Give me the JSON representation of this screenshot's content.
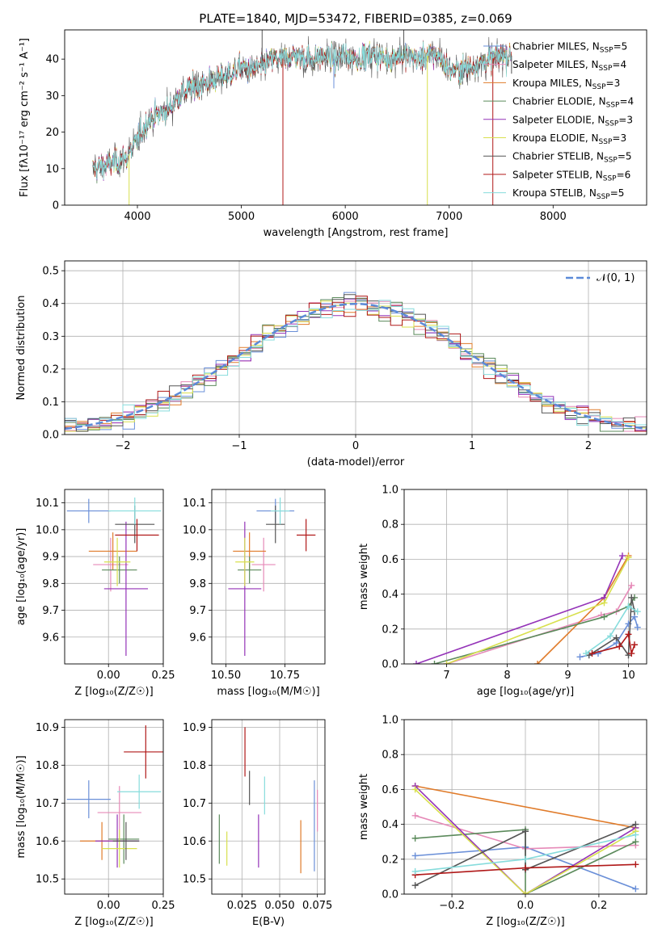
{
  "colors": {
    "chabrier_miles": "#6a8fd8",
    "salpeter_miles": "#e68ab8",
    "kroupa_miles": "#e07b2a",
    "chabrier_elodie": "#5b8a5b",
    "salpeter_elodie": "#9433b8",
    "kroupa_elodie": "#d8e04e",
    "chabrier_stelib": "#555555",
    "salpeter_stelib": "#b01818",
    "kroupa_stelib": "#86dcdc",
    "gaussian": "#5b8ad8"
  },
  "chart_data": [
    {
      "id": "spectrum",
      "type": "line",
      "title": "PLATE=1840, MJD=53472, FIBERID=0385, z=0.069",
      "xlabel": "wavelength [Angstrom, rest frame]",
      "ylabel": "Flux [fλ10⁻¹⁷ erg cm⁻² s⁻¹ A⁻¹]",
      "xlim": [
        3300,
        8900
      ],
      "ylim": [
        0,
        48
      ],
      "xticks": [
        "4000",
        "5000",
        "6000",
        "7000",
        "8000"
      ],
      "yticks": [
        "0",
        "10",
        "20",
        "30",
        "40"
      ],
      "grid": false,
      "legend": "top-right",
      "series": [
        {
          "key": "chabrier_miles",
          "name": "Chabrier MILES, N",
          "sub": "SSP",
          "suffix": "=5"
        },
        {
          "key": "salpeter_miles",
          "name": "Salpeter MILES, N",
          "sub": "SSP",
          "suffix": "=4"
        },
        {
          "key": "kroupa_miles",
          "name": "Kroupa MILES, N",
          "sub": "SSP",
          "suffix": "=3"
        },
        {
          "key": "chabrier_elodie",
          "name": "Chabrier ELODIE, N",
          "sub": "SSP",
          "suffix": "=4"
        },
        {
          "key": "salpeter_elodie",
          "name": "Salpeter ELODIE, N",
          "sub": "SSP",
          "suffix": "=3"
        },
        {
          "key": "kroupa_elodie",
          "name": "Kroupa ELODIE, N",
          "sub": "SSP",
          "suffix": "=3"
        },
        {
          "key": "chabrier_stelib",
          "name": "Chabrier STELIB, N",
          "sub": "SSP",
          "suffix": "=5"
        },
        {
          "key": "salpeter_stelib",
          "name": "Salpeter STELIB, N",
          "sub": "SSP",
          "suffix": "=6"
        },
        {
          "key": "kroupa_stelib",
          "name": "Kroupa STELIB, N",
          "sub": "SSP",
          "suffix": "=5"
        }
      ],
      "continuum": [
        [
          3570,
          10
        ],
        [
          3700,
          11
        ],
        [
          3800,
          12
        ],
        [
          3900,
          13
        ],
        [
          4000,
          18
        ],
        [
          4100,
          23
        ],
        [
          4200,
          25
        ],
        [
          4300,
          26
        ],
        [
          4400,
          30
        ],
        [
          4500,
          32
        ],
        [
          4600,
          33
        ],
        [
          4700,
          34
        ],
        [
          4800,
          35
        ],
        [
          4900,
          36
        ],
        [
          5000,
          38
        ],
        [
          5100,
          37
        ],
        [
          5200,
          38
        ],
        [
          5300,
          40
        ],
        [
          5400,
          40
        ],
        [
          5500,
          41
        ],
        [
          5600,
          41
        ],
        [
          5700,
          40
        ],
        [
          5800,
          41
        ],
        [
          5900,
          40
        ],
        [
          6000,
          41
        ],
        [
          6100,
          40
        ],
        [
          6200,
          41
        ],
        [
          6300,
          41
        ],
        [
          6400,
          40
        ],
        [
          6500,
          41
        ],
        [
          6600,
          41
        ],
        [
          6700,
          40
        ],
        [
          6800,
          41
        ],
        [
          6900,
          41
        ],
        [
          7000,
          37
        ],
        [
          7100,
          37
        ],
        [
          7200,
          38
        ],
        [
          7300,
          39
        ],
        [
          7400,
          40
        ],
        [
          7500,
          41
        ]
      ],
      "features": [
        {
          "x": 3920,
          "y": 0,
          "series": "kroupa_elodie"
        },
        {
          "x": 4860,
          "y": 32,
          "series": "chabrier_stelib"
        },
        {
          "x": 5200,
          "y": 48,
          "series": "chabrier_stelib"
        },
        {
          "x": 5400,
          "y": 0,
          "series": "salpeter_stelib"
        },
        {
          "x": 5890,
          "y": 32,
          "series": "chabrier_miles"
        },
        {
          "x": 6563,
          "y": 48,
          "series": "chabrier_stelib"
        },
        {
          "x": 6790,
          "y": 0,
          "series": "kroupa_elodie"
        },
        {
          "x": 7420,
          "y": 0,
          "series": "salpeter_stelib"
        },
        {
          "x": 7600,
          "y": 36,
          "series": "chabrier_stelib"
        }
      ]
    },
    {
      "id": "residuals",
      "type": "line",
      "xlabel": "(data-model)/error",
      "ylabel": "Normed distribution",
      "xlim": [
        -2.5,
        2.5
      ],
      "ylim": [
        0,
        0.53
      ],
      "xticks": [
        "−2",
        "−1",
        "0",
        "1",
        "2"
      ],
      "yticks": [
        "0.0",
        "0.1",
        "0.2",
        "0.3",
        "0.4",
        "0.5"
      ],
      "grid": true,
      "legend": "top-right",
      "gaussian_label": "𝒩(0, 1)",
      "bins": 50
    },
    {
      "id": "age_vs_Z",
      "type": "scatter",
      "xlabel": "Z [log₁₀(Z/Z☉)]",
      "ylabel": "age  [log₁₀(age/yr)]",
      "xlim": [
        -0.2,
        0.25
      ],
      "ylim": [
        9.5,
        10.15
      ],
      "xticks": [
        "0.00",
        "0.25"
      ],
      "yticks": [
        "9.6",
        "9.7",
        "9.8",
        "9.9",
        "10.0",
        "10.1"
      ],
      "grid": true,
      "points": [
        {
          "series": "chabrier_miles",
          "x": -0.09,
          "xerr": 0.1,
          "y": 10.07,
          "yerr": 0.045
        },
        {
          "series": "salpeter_miles",
          "x": 0.01,
          "xerr": 0.08,
          "y": 9.87,
          "yerr": 0.1
        },
        {
          "series": "kroupa_miles",
          "x": 0.02,
          "xerr": 0.11,
          "y": 9.92,
          "yerr": 0.07
        },
        {
          "series": "chabrier_elodie",
          "x": 0.05,
          "xerr": 0.08,
          "y": 9.85,
          "yerr": 0.05
        },
        {
          "series": "salpeter_elodie",
          "x": 0.08,
          "xerr": 0.1,
          "y": 9.78,
          "yerr": 0.25
        },
        {
          "series": "kroupa_elodie",
          "x": 0.04,
          "xerr": 0.06,
          "y": 9.88,
          "yerr": 0.09
        },
        {
          "series": "chabrier_stelib",
          "x": 0.12,
          "xerr": 0.09,
          "y": 10.02,
          "yerr": 0.07
        },
        {
          "series": "salpeter_stelib",
          "x": 0.13,
          "xerr": 0.1,
          "y": 9.98,
          "yerr": 0.06
        },
        {
          "series": "kroupa_stelib",
          "x": 0.12,
          "xerr": 0.12,
          "y": 10.07,
          "yerr": 0.05
        }
      ]
    },
    {
      "id": "age_vs_mass",
      "type": "scatter",
      "xlabel": "mass [log₁₀(M/M☉)]",
      "xlim": [
        10.44,
        10.92
      ],
      "ylim": [
        9.5,
        10.15
      ],
      "xticks": [
        "10.50",
        "10.75"
      ],
      "yticks": [
        "9.6",
        "9.7",
        "9.8",
        "9.9",
        "10.0",
        "10.1"
      ],
      "grid": true,
      "points": [
        {
          "series": "chabrier_miles",
          "x": 10.71,
          "xerr": 0.08,
          "y": 10.07,
          "yerr": 0.045
        },
        {
          "series": "salpeter_miles",
          "x": 10.66,
          "xerr": 0.05,
          "y": 9.87,
          "yerr": 0.1
        },
        {
          "series": "kroupa_miles",
          "x": 10.6,
          "xerr": 0.07,
          "y": 9.92,
          "yerr": 0.07
        },
        {
          "series": "chabrier_elodie",
          "x": 10.6,
          "xerr": 0.05,
          "y": 9.85,
          "yerr": 0.05
        },
        {
          "series": "salpeter_elodie",
          "x": 10.58,
          "xerr": 0.07,
          "y": 9.78,
          "yerr": 0.25
        },
        {
          "series": "kroupa_elodie",
          "x": 10.58,
          "xerr": 0.04,
          "y": 9.88,
          "yerr": 0.09
        },
        {
          "series": "chabrier_stelib",
          "x": 10.71,
          "xerr": 0.04,
          "y": 10.02,
          "yerr": 0.07
        },
        {
          "series": "salpeter_stelib",
          "x": 10.84,
          "xerr": 0.04,
          "y": 9.98,
          "yerr": 0.06
        },
        {
          "series": "kroupa_stelib",
          "x": 10.73,
          "xerr": 0.04,
          "y": 10.07,
          "yerr": 0.05
        }
      ]
    },
    {
      "id": "weight_vs_age",
      "type": "line",
      "xlabel": "age  [log₁₀(age/yr)]",
      "ylabel": "mass weight",
      "xlim": [
        6.3,
        10.3
      ],
      "ylim": [
        0,
        1.0
      ],
      "xticks": [
        "7",
        "8",
        "9",
        "10"
      ],
      "yticks": [
        "0.0",
        "0.2",
        "0.4",
        "0.6",
        "0.8",
        "1.0"
      ],
      "grid": true,
      "series": [
        {
          "series": "chabrier_miles",
          "points": [
            [
              9.2,
              0.04
            ],
            [
              9.5,
              0.06
            ],
            [
              9.8,
              0.12
            ],
            [
              10.0,
              0.23
            ],
            [
              10.1,
              0.27
            ],
            [
              10.15,
              0.21
            ]
          ]
        },
        {
          "series": "salpeter_miles",
          "points": [
            [
              7.0,
              0.0
            ],
            [
              9.55,
              0.28
            ],
            [
              9.8,
              0.3
            ],
            [
              10.05,
              0.45
            ]
          ]
        },
        {
          "series": "kroupa_miles",
          "points": [
            [
              8.5,
              0.0
            ],
            [
              9.6,
              0.38
            ],
            [
              10.0,
              0.62
            ]
          ]
        },
        {
          "series": "chabrier_elodie",
          "points": [
            [
              6.8,
              0.0
            ],
            [
              9.6,
              0.27
            ],
            [
              10.0,
              0.33
            ],
            [
              10.1,
              0.38
            ]
          ]
        },
        {
          "series": "salpeter_elodie",
          "points": [
            [
              6.5,
              0.0
            ],
            [
              9.6,
              0.38
            ],
            [
              9.9,
              0.62
            ]
          ]
        },
        {
          "series": "kroupa_elodie",
          "points": [
            [
              7.0,
              0.0
            ],
            [
              9.6,
              0.35
            ],
            [
              10.0,
              0.61
            ]
          ]
        },
        {
          "series": "chabrier_stelib",
          "points": [
            [
              9.35,
              0.05
            ],
            [
              9.8,
              0.15
            ],
            [
              10.0,
              0.05
            ],
            [
              10.05,
              0.38
            ],
            [
              10.1,
              0.3
            ]
          ]
        },
        {
          "series": "salpeter_stelib",
          "points": [
            [
              9.4,
              0.06
            ],
            [
              9.85,
              0.1
            ],
            [
              10.0,
              0.17
            ],
            [
              10.05,
              0.06
            ],
            [
              10.1,
              0.11
            ]
          ]
        },
        {
          "series": "kroupa_stelib",
          "points": [
            [
              9.3,
              0.06
            ],
            [
              9.7,
              0.16
            ],
            [
              10.0,
              0.33
            ],
            [
              10.15,
              0.3
            ]
          ]
        }
      ]
    },
    {
      "id": "mass_vs_Z",
      "type": "scatter",
      "xlabel": "Z [log₁₀(Z/Z☉)]",
      "ylabel": "mass [log₁₀(M/M☉)]",
      "xlim": [
        -0.2,
        0.25
      ],
      "ylim": [
        10.46,
        10.92
      ],
      "xticks": [
        "0.00",
        "0.25"
      ],
      "yticks": [
        "10.5",
        "10.6",
        "10.7",
        "10.8",
        "10.9"
      ],
      "grid": true,
      "points": [
        {
          "series": "chabrier_miles",
          "x": -0.09,
          "xerr": 0.1,
          "y": 10.71,
          "yerr": 0.05
        },
        {
          "series": "salpeter_miles",
          "x": 0.05,
          "xerr": 0.1,
          "y": 10.675,
          "yerr": 0.07
        },
        {
          "series": "kroupa_miles",
          "x": -0.03,
          "xerr": 0.1,
          "y": 10.6,
          "yerr": 0.05
        },
        {
          "series": "chabrier_elodie",
          "x": 0.07,
          "xerr": 0.07,
          "y": 10.605,
          "yerr": 0.065
        },
        {
          "series": "salpeter_elodie",
          "x": 0.04,
          "xerr": 0.1,
          "y": 10.6,
          "yerr": 0.07
        },
        {
          "series": "kroupa_elodie",
          "x": 0.05,
          "xerr": 0.08,
          "y": 10.58,
          "yerr": 0.05
        },
        {
          "series": "chabrier_stelib",
          "x": 0.08,
          "xerr": 0.06,
          "y": 10.6,
          "yerr": 0.05
        },
        {
          "series": "salpeter_stelib",
          "x": 0.17,
          "xerr": 0.1,
          "y": 10.835,
          "yerr": 0.07
        },
        {
          "series": "kroupa_stelib",
          "x": 0.14,
          "xerr": 0.1,
          "y": 10.73,
          "yerr": 0.045
        }
      ]
    },
    {
      "id": "mass_vs_ebv",
      "type": "scatter",
      "xlabel": "E(B-V)",
      "xlim": [
        0.005,
        0.08
      ],
      "ylim": [
        10.46,
        10.92
      ],
      "xticks": [
        "0.025",
        "0.050",
        "0.075"
      ],
      "yticks": [
        "10.5",
        "10.6",
        "10.7",
        "10.8",
        "10.9"
      ],
      "grid": true,
      "points": [
        {
          "series": "chabrier_miles",
          "x": 0.073,
          "y": 10.64,
          "yerr": 0.12
        },
        {
          "series": "salpeter_miles",
          "x": 0.075,
          "y": 10.68,
          "yerr": 0.055
        },
        {
          "series": "kroupa_miles",
          "x": 0.064,
          "y": 10.585,
          "yerr": 0.07
        },
        {
          "series": "chabrier_elodie",
          "x": 0.01,
          "y": 10.605,
          "yerr": 0.065
        },
        {
          "series": "salpeter_elodie",
          "x": 0.036,
          "y": 10.6,
          "yerr": 0.07
        },
        {
          "series": "kroupa_elodie",
          "x": 0.015,
          "y": 10.58,
          "yerr": 0.045
        },
        {
          "series": "chabrier_stelib",
          "x": 0.03,
          "y": 10.74,
          "yerr": 0.045
        },
        {
          "series": "salpeter_stelib",
          "x": 0.027,
          "y": 10.835,
          "yerr": 0.065
        },
        {
          "series": "kroupa_stelib",
          "x": 0.04,
          "y": 10.72,
          "yerr": 0.05
        }
      ]
    },
    {
      "id": "weight_vs_Z",
      "type": "line",
      "xlabel": "Z [log₁₀(Z/Z☉)]",
      "ylabel": "mass weight",
      "xlim": [
        -0.33,
        0.33
      ],
      "ylim": [
        0,
        1.0
      ],
      "xticks": [
        "−0.2",
        "0.0",
        "0.2"
      ],
      "yticks": [
        "0.0",
        "0.2",
        "0.4",
        "0.6",
        "0.8",
        "1.0"
      ],
      "grid": true,
      "series": [
        {
          "series": "chabrier_miles",
          "points": [
            [
              -0.3,
              0.22
            ],
            [
              0.0,
              0.27
            ],
            [
              0.3,
              0.03
            ]
          ]
        },
        {
          "series": "salpeter_miles",
          "points": [
            [
              -0.3,
              0.45
            ],
            [
              0.0,
              0.26
            ],
            [
              0.3,
              0.28
            ]
          ]
        },
        {
          "series": "kroupa_miles",
          "points": [
            [
              -0.3,
              0.62
            ],
            [
              0.3,
              0.38
            ]
          ]
        },
        {
          "series": "chabrier_elodie",
          "points": [
            [
              -0.3,
              0.32
            ],
            [
              0.0,
              0.37
            ],
            [
              0.0,
              0.0
            ],
            [
              0.3,
              0.3
            ]
          ]
        },
        {
          "series": "salpeter_elodie",
          "points": [
            [
              -0.3,
              0.62
            ],
            [
              0.0,
              0.0
            ],
            [
              0.3,
              0.38
            ]
          ]
        },
        {
          "series": "kroupa_elodie",
          "points": [
            [
              -0.3,
              0.6
            ],
            [
              0.0,
              0.0
            ],
            [
              0.3,
              0.36
            ]
          ]
        },
        {
          "series": "chabrier_stelib",
          "points": [
            [
              -0.3,
              0.05
            ],
            [
              0.0,
              0.36
            ],
            [
              0.0,
              0.14
            ],
            [
              0.3,
              0.4
            ]
          ]
        },
        {
          "series": "salpeter_stelib",
          "points": [
            [
              -0.3,
              0.11
            ],
            [
              0.0,
              0.15
            ],
            [
              0.3,
              0.17
            ]
          ]
        },
        {
          "series": "kroupa_stelib",
          "points": [
            [
              -0.3,
              0.13
            ],
            [
              0.0,
              0.2
            ],
            [
              0.3,
              0.34
            ]
          ]
        }
      ]
    }
  ]
}
